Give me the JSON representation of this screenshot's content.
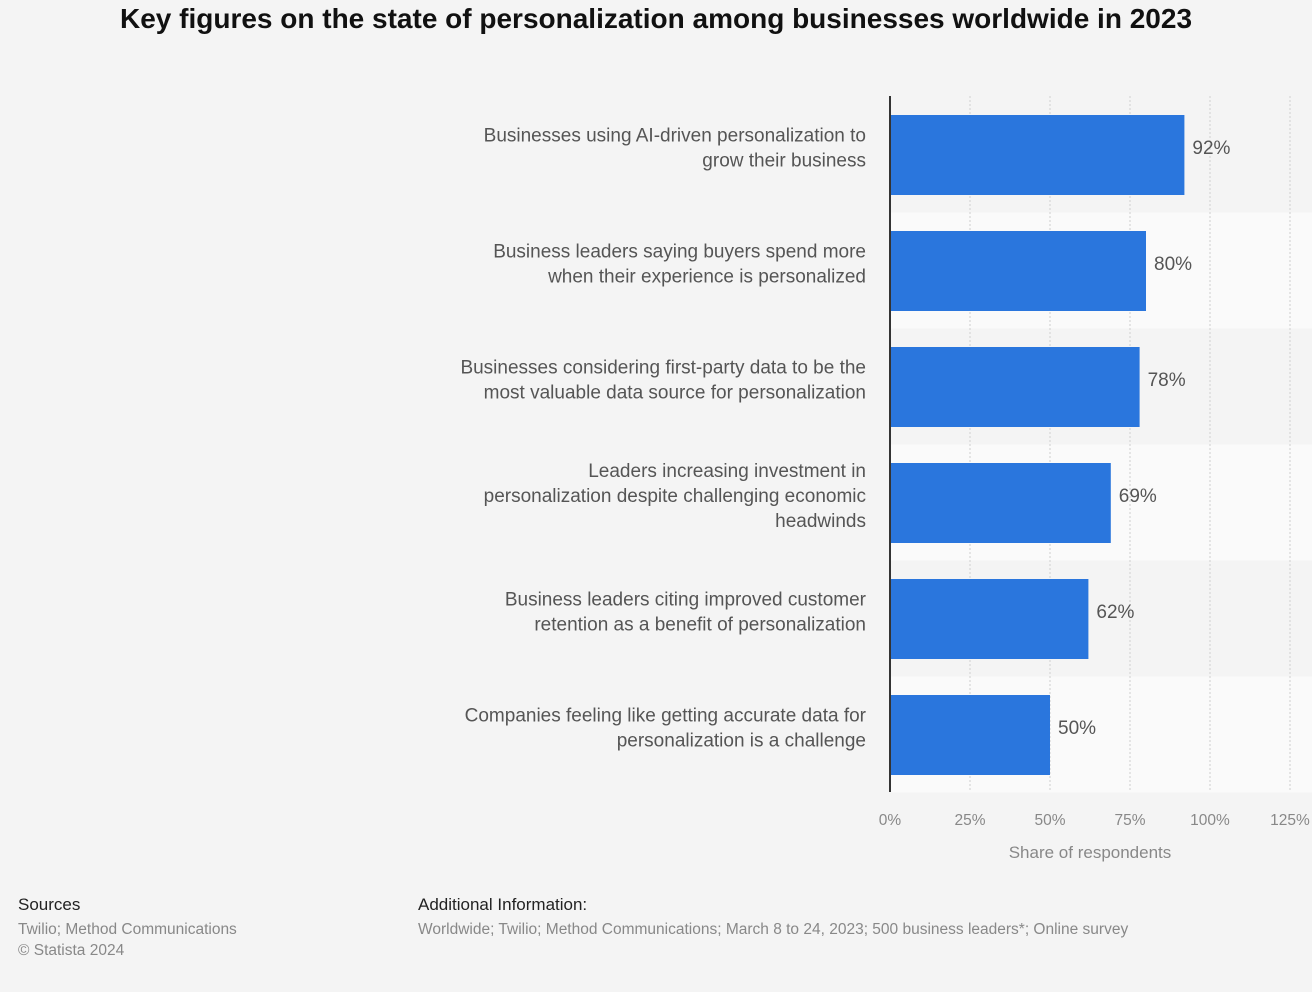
{
  "chart_data": {
    "type": "bar",
    "orientation": "horizontal",
    "title": "Key figures on the state of personalization among businesses worldwide in 2023",
    "categories": [
      [
        "Businesses using AI-driven personalization to",
        "grow their business"
      ],
      [
        "Business leaders saying buyers spend more",
        "when their experience is personalized"
      ],
      [
        "Businesses considering first-party data to be the",
        "most valuable data source for personalization"
      ],
      [
        "Leaders increasing investment in",
        "personalization despite challenging economic",
        "headwinds"
      ],
      [
        "Business leaders citing improved customer",
        "retention as a benefit of personalization"
      ],
      [
        "Companies feeling like getting accurate data for",
        "personalization is a challenge"
      ]
    ],
    "values": [
      92,
      80,
      78,
      69,
      62,
      50
    ],
    "value_labels": [
      "92%",
      "80%",
      "78%",
      "69%",
      "62%",
      "50%"
    ],
    "xlabel": "Share of respondents",
    "ylabel": "",
    "xlim": [
      0,
      125
    ],
    "ticks": [
      0,
      25,
      50,
      75,
      100,
      125
    ],
    "tick_labels": [
      "0%",
      "25%",
      "50%",
      "75%",
      "100%",
      "125%"
    ],
    "grid": true,
    "bar_color": "#2a76dd"
  },
  "footer": {
    "sources_heading": "Sources",
    "sources_text": "Twilio; Method Communications",
    "copyright": "© Statista 2024",
    "additional_heading": "Additional Information:",
    "additional_text": "Worldwide; Twilio; Method Communications; March 8 to 24, 2023; 500 business leaders*; Online survey"
  }
}
